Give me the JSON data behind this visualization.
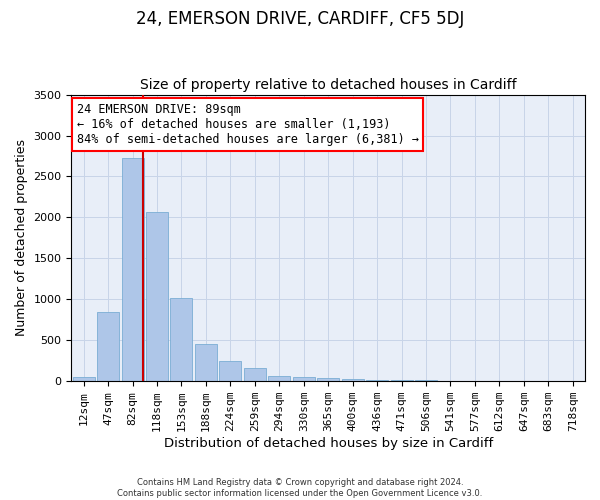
{
  "title1": "24, EMERSON DRIVE, CARDIFF, CF5 5DJ",
  "title2": "Size of property relative to detached houses in Cardiff",
  "xlabel": "Distribution of detached houses by size in Cardiff",
  "ylabel": "Number of detached properties",
  "footnote1": "Contains HM Land Registry data © Crown copyright and database right 2024.",
  "footnote2": "Contains public sector information licensed under the Open Government Licence v3.0.",
  "bar_labels": [
    "12sqm",
    "47sqm",
    "82sqm",
    "118sqm",
    "153sqm",
    "188sqm",
    "224sqm",
    "259sqm",
    "294sqm",
    "330sqm",
    "365sqm",
    "400sqm",
    "436sqm",
    "471sqm",
    "506sqm",
    "541sqm",
    "577sqm",
    "612sqm",
    "647sqm",
    "683sqm",
    "718sqm"
  ],
  "bar_values": [
    55,
    850,
    2720,
    2060,
    1010,
    455,
    250,
    160,
    65,
    55,
    40,
    25,
    20,
    15,
    10,
    0,
    0,
    0,
    0,
    0,
    0
  ],
  "bar_color": "#aec6e8",
  "bar_edgecolor": "#7aadd4",
  "grid_color": "#c8d4e8",
  "background_color": "#e8eef8",
  "annotation_line1": "24 EMERSON DRIVE: 89sqm",
  "annotation_line2": "← 16% of detached houses are smaller (1,193)",
  "annotation_line3": "84% of semi-detached houses are larger (6,381) →",
  "vline_color": "#cc0000",
  "ylim": [
    0,
    3500
  ],
  "yticks": [
    0,
    500,
    1000,
    1500,
    2000,
    2500,
    3000,
    3500
  ],
  "title1_fontsize": 12,
  "title2_fontsize": 10,
  "xlabel_fontsize": 9.5,
  "ylabel_fontsize": 9,
  "annotation_fontsize": 8.5,
  "tick_fontsize": 8
}
